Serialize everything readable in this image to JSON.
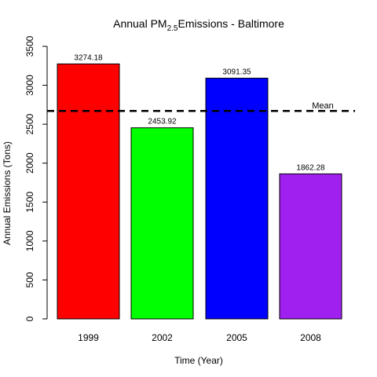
{
  "chart_data": {
    "type": "bar",
    "title": "Annual PM",
    "title_sub": "2.5",
    "title_rest": "Emissions - Baltimore",
    "xlabel": "Time (Year)",
    "ylabel": "Annual Emissions (Tons)",
    "categories": [
      "1999",
      "2002",
      "2005",
      "2008"
    ],
    "values": [
      3274.18,
      2453.92,
      3091.35,
      1862.28
    ],
    "value_labels": [
      "3274.18",
      "2453.92",
      "3091.35",
      "1862.28"
    ],
    "colors": [
      "#ff0000",
      "#00ff00",
      "#0000ff",
      "#a020f0"
    ],
    "ylim": [
      0,
      3500
    ],
    "yticks": [
      0,
      500,
      1000,
      1500,
      2000,
      2500,
      3000,
      3500
    ],
    "ytick_labels": [
      "0",
      "500",
      "1000",
      "1500",
      "2000",
      "2500",
      "3000",
      "3500"
    ],
    "mean_line": {
      "value": 2670.43,
      "label": "Mean",
      "style": "dashed"
    },
    "grid": false,
    "legend": "none"
  }
}
